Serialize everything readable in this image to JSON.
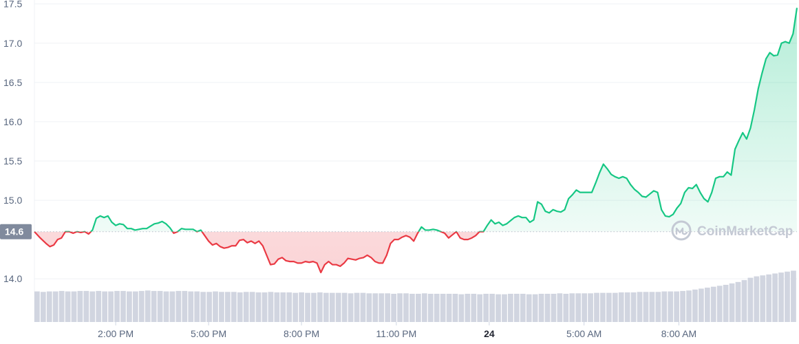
{
  "chart_data": {
    "type": "line",
    "title": "",
    "xlabel": "",
    "ylabel": "",
    "ylim": [
      13.45,
      17.55
    ],
    "xlim": [
      0,
      39.4
    ],
    "y_ticks": [
      {
        "value": 14.0,
        "label": "14.0"
      },
      {
        "value": 15.0,
        "label": "15.0"
      },
      {
        "value": 15.5,
        "label": "15.5"
      },
      {
        "value": 16.0,
        "label": "16.0"
      },
      {
        "value": 16.5,
        "label": "16.5"
      },
      {
        "value": 17.0,
        "label": "17.0"
      },
      {
        "value": 17.5,
        "label": "17.5"
      }
    ],
    "x_ticks": [
      {
        "value": 4.2,
        "label": "2:00 PM",
        "bold": false
      },
      {
        "value": 9.0,
        "label": "5:00 PM",
        "bold": false
      },
      {
        "value": 13.8,
        "label": "8:00 PM",
        "bold": false
      },
      {
        "value": 18.7,
        "label": "11:00 PM",
        "bold": false
      },
      {
        "value": 23.5,
        "label": "24",
        "bold": true
      },
      {
        "value": 28.4,
        "label": "5:00 AM",
        "bold": false
      },
      {
        "value": 33.3,
        "label": "8:00 AM",
        "bold": false
      }
    ],
    "reference": {
      "value": 14.6,
      "label": "14.6"
    },
    "up_color": "#16c784",
    "down_color": "#ea3943",
    "grid": true,
    "series": [
      {
        "values": [
          [
            0.0,
            14.6
          ],
          [
            0.3,
            14.52
          ],
          [
            0.6,
            14.45
          ],
          [
            0.8,
            14.41
          ],
          [
            1.0,
            14.43
          ],
          [
            1.2,
            14.5
          ],
          [
            1.4,
            14.52
          ],
          [
            1.6,
            14.6
          ],
          [
            1.8,
            14.6
          ],
          [
            2.0,
            14.58
          ],
          [
            2.2,
            14.6
          ],
          [
            2.4,
            14.59
          ],
          [
            2.6,
            14.6
          ],
          [
            2.8,
            14.57
          ],
          [
            3.0,
            14.62
          ],
          [
            3.2,
            14.77
          ],
          [
            3.4,
            14.8
          ],
          [
            3.6,
            14.78
          ],
          [
            3.8,
            14.8
          ],
          [
            4.0,
            14.72
          ],
          [
            4.2,
            14.68
          ],
          [
            4.4,
            14.7
          ],
          [
            4.6,
            14.69
          ],
          [
            4.8,
            14.64
          ],
          [
            5.0,
            14.64
          ],
          [
            5.2,
            14.62
          ],
          [
            5.4,
            14.63
          ],
          [
            5.6,
            14.64
          ],
          [
            5.8,
            14.64
          ],
          [
            6.0,
            14.67
          ],
          [
            6.2,
            14.7
          ],
          [
            6.4,
            14.71
          ],
          [
            6.6,
            14.73
          ],
          [
            6.8,
            14.7
          ],
          [
            7.0,
            14.65
          ],
          [
            7.2,
            14.58
          ],
          [
            7.4,
            14.6
          ],
          [
            7.6,
            14.64
          ],
          [
            7.8,
            14.63
          ],
          [
            8.0,
            14.63
          ],
          [
            8.2,
            14.63
          ],
          [
            8.4,
            14.6
          ],
          [
            8.6,
            14.62
          ],
          [
            8.8,
            14.55
          ],
          [
            9.0,
            14.48
          ],
          [
            9.2,
            14.43
          ],
          [
            9.4,
            14.45
          ],
          [
            9.6,
            14.41
          ],
          [
            9.8,
            14.39
          ],
          [
            10.0,
            14.4
          ],
          [
            10.2,
            14.42
          ],
          [
            10.4,
            14.42
          ],
          [
            10.6,
            14.49
          ],
          [
            10.8,
            14.5
          ],
          [
            11.0,
            14.46
          ],
          [
            11.2,
            14.48
          ],
          [
            11.4,
            14.45
          ],
          [
            11.6,
            14.48
          ],
          [
            11.8,
            14.42
          ],
          [
            12.0,
            14.3
          ],
          [
            12.2,
            14.18
          ],
          [
            12.4,
            14.19
          ],
          [
            12.6,
            14.25
          ],
          [
            12.8,
            14.27
          ],
          [
            13.0,
            14.23
          ],
          [
            13.2,
            14.22
          ],
          [
            13.4,
            14.22
          ],
          [
            13.6,
            14.2
          ],
          [
            13.8,
            14.2
          ],
          [
            14.0,
            14.22
          ],
          [
            14.2,
            14.21
          ],
          [
            14.4,
            14.22
          ],
          [
            14.6,
            14.2
          ],
          [
            14.8,
            14.08
          ],
          [
            15.0,
            14.18
          ],
          [
            15.2,
            14.22
          ],
          [
            15.4,
            14.18
          ],
          [
            15.6,
            14.18
          ],
          [
            15.8,
            14.16
          ],
          [
            16.0,
            14.2
          ],
          [
            16.2,
            14.26
          ],
          [
            16.4,
            14.25
          ],
          [
            16.6,
            14.24
          ],
          [
            16.8,
            14.26
          ],
          [
            17.0,
            14.27
          ],
          [
            17.2,
            14.3
          ],
          [
            17.4,
            14.27
          ],
          [
            17.6,
            14.22
          ],
          [
            17.8,
            14.2
          ],
          [
            18.0,
            14.2
          ],
          [
            18.2,
            14.3
          ],
          [
            18.4,
            14.45
          ],
          [
            18.6,
            14.5
          ],
          [
            18.8,
            14.5
          ],
          [
            19.0,
            14.53
          ],
          [
            19.2,
            14.55
          ],
          [
            19.4,
            14.53
          ],
          [
            19.6,
            14.48
          ],
          [
            19.8,
            14.58
          ],
          [
            20.0,
            14.66
          ],
          [
            20.2,
            14.62
          ],
          [
            20.4,
            14.62
          ],
          [
            20.6,
            14.63
          ],
          [
            20.8,
            14.62
          ],
          [
            21.0,
            14.6
          ],
          [
            21.2,
            14.58
          ],
          [
            21.4,
            14.52
          ],
          [
            21.6,
            14.56
          ],
          [
            21.8,
            14.6
          ],
          [
            22.0,
            14.52
          ],
          [
            22.2,
            14.5
          ],
          [
            22.4,
            14.5
          ],
          [
            22.6,
            14.52
          ],
          [
            22.8,
            14.55
          ],
          [
            23.0,
            14.6
          ],
          [
            23.2,
            14.6
          ],
          [
            23.4,
            14.68
          ],
          [
            23.6,
            14.75
          ],
          [
            23.8,
            14.7
          ],
          [
            24.0,
            14.72
          ],
          [
            24.2,
            14.68
          ],
          [
            24.4,
            14.7
          ],
          [
            24.6,
            14.74
          ],
          [
            24.8,
            14.78
          ],
          [
            25.0,
            14.8
          ],
          [
            25.2,
            14.78
          ],
          [
            25.4,
            14.78
          ],
          [
            25.6,
            14.72
          ],
          [
            25.8,
            14.75
          ],
          [
            26.0,
            14.98
          ],
          [
            26.2,
            14.95
          ],
          [
            26.4,
            14.86
          ],
          [
            26.6,
            14.84
          ],
          [
            26.8,
            14.88
          ],
          [
            27.0,
            14.86
          ],
          [
            27.2,
            14.85
          ],
          [
            27.4,
            14.88
          ],
          [
            27.6,
            15.02
          ],
          [
            27.8,
            15.07
          ],
          [
            28.0,
            15.13
          ],
          [
            28.2,
            15.1
          ],
          [
            28.4,
            15.1
          ],
          [
            28.6,
            15.1
          ],
          [
            28.8,
            15.1
          ],
          [
            29.0,
            15.22
          ],
          [
            29.2,
            15.35
          ],
          [
            29.4,
            15.46
          ],
          [
            29.6,
            15.4
          ],
          [
            29.8,
            15.33
          ],
          [
            30.0,
            15.3
          ],
          [
            30.2,
            15.28
          ],
          [
            30.4,
            15.3
          ],
          [
            30.6,
            15.28
          ],
          [
            30.8,
            15.2
          ],
          [
            31.0,
            15.14
          ],
          [
            31.2,
            15.1
          ],
          [
            31.4,
            15.05
          ],
          [
            31.6,
            15.04
          ],
          [
            31.8,
            15.08
          ],
          [
            32.0,
            15.12
          ],
          [
            32.2,
            15.1
          ],
          [
            32.4,
            14.88
          ],
          [
            32.6,
            14.8
          ],
          [
            32.8,
            14.79
          ],
          [
            33.0,
            14.82
          ],
          [
            33.2,
            14.9
          ],
          [
            33.4,
            14.96
          ],
          [
            33.6,
            15.1
          ],
          [
            33.8,
            15.16
          ],
          [
            34.0,
            15.15
          ],
          [
            34.2,
            15.2
          ],
          [
            34.4,
            15.1
          ],
          [
            34.6,
            15.02
          ],
          [
            34.8,
            14.98
          ],
          [
            35.0,
            15.1
          ],
          [
            35.2,
            15.28
          ],
          [
            35.4,
            15.3
          ],
          [
            35.6,
            15.3
          ],
          [
            35.8,
            15.36
          ],
          [
            36.0,
            15.32
          ],
          [
            36.2,
            15.65
          ],
          [
            36.4,
            15.76
          ],
          [
            36.6,
            15.86
          ],
          [
            36.8,
            15.78
          ],
          [
            37.0,
            15.92
          ],
          [
            37.2,
            16.15
          ],
          [
            37.4,
            16.42
          ],
          [
            37.6,
            16.62
          ],
          [
            37.8,
            16.8
          ],
          [
            38.0,
            16.88
          ],
          [
            38.2,
            16.84
          ],
          [
            38.4,
            16.85
          ],
          [
            38.6,
            17.0
          ],
          [
            38.8,
            17.02
          ],
          [
            39.0,
            17.0
          ],
          [
            39.2,
            17.12
          ],
          [
            39.4,
            17.45
          ]
        ]
      }
    ],
    "volume": [
      0.56,
      0.55,
      0.56,
      0.56,
      0.57,
      0.56,
      0.56,
      0.57,
      0.57,
      0.56,
      0.57,
      0.56,
      0.56,
      0.57,
      0.57,
      0.56,
      0.56,
      0.57,
      0.58,
      0.57,
      0.57,
      0.56,
      0.56,
      0.57,
      0.57,
      0.56,
      0.56,
      0.55,
      0.55,
      0.56,
      0.55,
      0.55,
      0.55,
      0.54,
      0.55,
      0.55,
      0.54,
      0.54,
      0.55,
      0.54,
      0.54,
      0.54,
      0.53,
      0.54,
      0.53,
      0.53,
      0.54,
      0.53,
      0.53,
      0.53,
      0.53,
      0.52,
      0.53,
      0.53,
      0.52,
      0.52,
      0.52,
      0.52,
      0.51,
      0.52,
      0.52,
      0.51,
      0.51,
      0.52,
      0.51,
      0.51,
      0.51,
      0.51,
      0.51,
      0.5,
      0.51,
      0.51,
      0.5,
      0.51,
      0.51,
      0.5,
      0.5,
      0.51,
      0.51,
      0.51,
      0.5,
      0.5,
      0.51,
      0.51,
      0.51,
      0.52,
      0.51,
      0.52,
      0.52,
      0.52,
      0.52,
      0.53,
      0.53,
      0.53,
      0.53,
      0.54,
      0.54,
      0.54,
      0.55,
      0.55,
      0.55,
      0.55,
      0.56,
      0.56,
      0.56,
      0.57,
      0.58,
      0.6,
      0.62,
      0.64,
      0.66,
      0.68,
      0.7,
      0.73,
      0.76,
      0.8,
      0.85,
      0.88,
      0.9,
      0.92,
      0.94,
      0.96,
      0.98,
      1.0
    ]
  },
  "watermark": {
    "text": "CoinMarketCap",
    "icon": "coinmarketcap-logo-icon"
  }
}
